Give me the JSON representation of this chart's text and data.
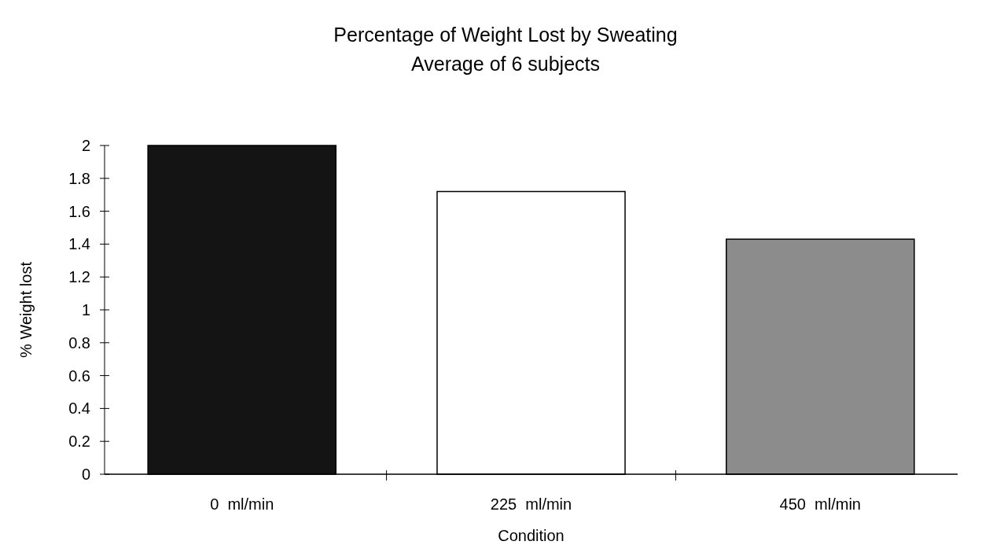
{
  "chart_data": {
    "type": "bar",
    "title": "Percentage of Weight Lost by Sweating",
    "subtitle": "Average of 6 subjects",
    "xlabel": "Condition",
    "ylabel": "% Weight lost",
    "categories": [
      "0  ml/min",
      "225  ml/min",
      "450  ml/min"
    ],
    "values": [
      2.0,
      1.72,
      1.43
    ],
    "colors": [
      "#141414",
      "#ffffff",
      "#8c8c8c"
    ],
    "ylim": [
      0,
      2
    ],
    "yticks": [
      0,
      0.2,
      0.4,
      0.6,
      0.8,
      1,
      1.2,
      1.4,
      1.6,
      1.8,
      2
    ],
    "grid": false
  }
}
